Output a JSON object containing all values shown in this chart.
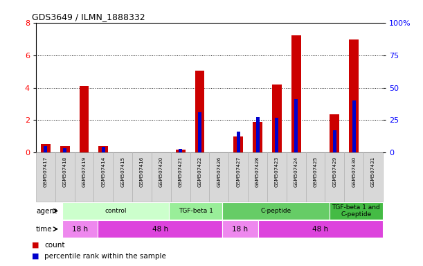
{
  "title": "GDS3649 / ILMN_1888332",
  "samples": [
    "GSM507417",
    "GSM507418",
    "GSM507419",
    "GSM507414",
    "GSM507415",
    "GSM507416",
    "GSM507420",
    "GSM507421",
    "GSM507422",
    "GSM507426",
    "GSM507427",
    "GSM507428",
    "GSM507423",
    "GSM507424",
    "GSM507425",
    "GSM507429",
    "GSM507430",
    "GSM507431"
  ],
  "count_values": [
    0.55,
    0.38,
    4.1,
    0.42,
    0.0,
    0.0,
    0.0,
    0.18,
    5.05,
    0.0,
    1.0,
    1.9,
    4.2,
    7.2,
    0.0,
    2.35,
    6.95,
    0.0
  ],
  "percentile_values": [
    0.38,
    0.28,
    0.0,
    0.35,
    0.0,
    0.0,
    0.0,
    0.22,
    2.5,
    0.0,
    1.3,
    2.2,
    2.15,
    3.3,
    0.0,
    1.4,
    3.2,
    0.0
  ],
  "count_color": "#cc0000",
  "percentile_color": "#0000cc",
  "ylim_left": [
    0,
    8
  ],
  "ylim_right": [
    0,
    100
  ],
  "yticks_left": [
    0,
    2,
    4,
    6,
    8
  ],
  "yticks_right": [
    0,
    25,
    50,
    75,
    100
  ],
  "agent_groups": [
    {
      "label": "control",
      "start": 0,
      "end": 6,
      "color": "#ccffcc"
    },
    {
      "label": "TGF-beta 1",
      "start": 6,
      "end": 9,
      "color": "#99ee99"
    },
    {
      "label": "C-peptide",
      "start": 9,
      "end": 15,
      "color": "#66cc66"
    },
    {
      "label": "TGF-beta 1 and\nC-peptide",
      "start": 15,
      "end": 18,
      "color": "#44bb44"
    }
  ],
  "time_groups": [
    {
      "label": "18 h",
      "start": 0,
      "end": 2,
      "color": "#ee88ee"
    },
    {
      "label": "48 h",
      "start": 2,
      "end": 9,
      "color": "#dd44dd"
    },
    {
      "label": "18 h",
      "start": 9,
      "end": 11,
      "color": "#ee88ee"
    },
    {
      "label": "48 h",
      "start": 11,
      "end": 18,
      "color": "#dd44dd"
    }
  ],
  "legend_items": [
    {
      "label": "count",
      "color": "#cc0000"
    },
    {
      "label": "percentile rank within the sample",
      "color": "#0000cc"
    }
  ],
  "bar_width": 0.5,
  "pct_bar_width": 0.18
}
